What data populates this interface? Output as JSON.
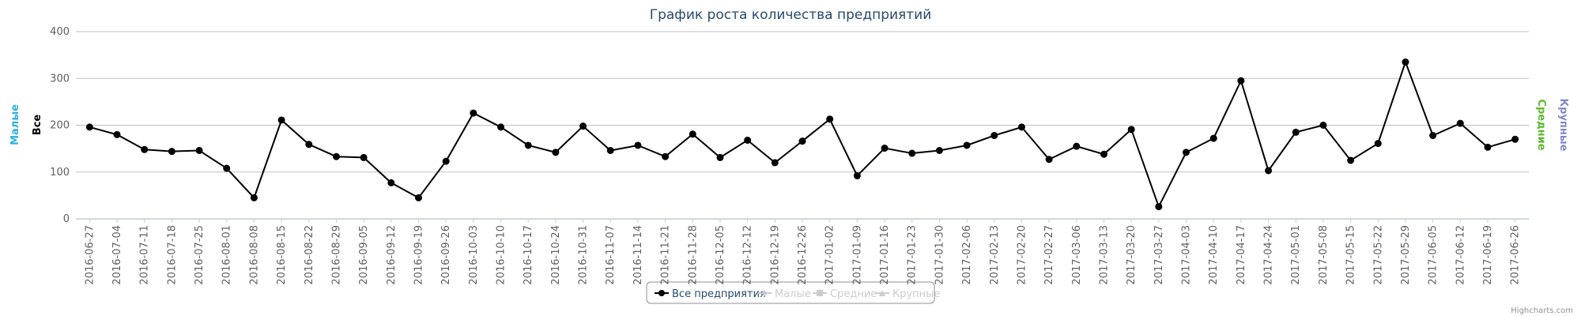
{
  "chart_data": {
    "type": "line",
    "title": "График роста количества предприятий",
    "categories": [
      "2016-06-27",
      "2016-07-04",
      "2016-07-11",
      "2016-07-18",
      "2016-07-25",
      "2016-08-01",
      "2016-08-08",
      "2016-08-15",
      "2016-08-22",
      "2016-08-29",
      "2016-09-05",
      "2016-09-12",
      "2016-09-19",
      "2016-09-26",
      "2016-10-03",
      "2016-10-10",
      "2016-10-17",
      "2016-10-24",
      "2016-10-31",
      "2016-11-07",
      "2016-11-14",
      "2016-11-21",
      "2016-11-28",
      "2016-12-05",
      "2016-12-12",
      "2016-12-19",
      "2016-12-26",
      "2017-01-02",
      "2017-01-09",
      "2017-01-16",
      "2017-01-23",
      "2017-01-30",
      "2017-02-06",
      "2017-02-13",
      "2017-02-20",
      "2017-02-27",
      "2017-03-06",
      "2017-03-13",
      "2017-03-20",
      "2017-03-27",
      "2017-04-03",
      "2017-04-10",
      "2017-04-17",
      "2017-04-24",
      "2017-05-01",
      "2017-05-08",
      "2017-05-15",
      "2017-05-22",
      "2017-05-29",
      "2017-06-05",
      "2017-06-12",
      "2017-06-19",
      "2017-06-26"
    ],
    "series": [
      {
        "name": "Все предприятия",
        "color": "#000000",
        "marker": "circle",
        "visible": true,
        "values": [
          196,
          180,
          148,
          144,
          146,
          108,
          45,
          211,
          159,
          133,
          131,
          77,
          45,
          123,
          226,
          196,
          157,
          142,
          198,
          146,
          157,
          133,
          181,
          131,
          168,
          120,
          166,
          213,
          92,
          151,
          140,
          146,
          157,
          178,
          196,
          127,
          155,
          138,
          191,
          26,
          142,
          172,
          295,
          103,
          185,
          200,
          125,
          161,
          335,
          178,
          204,
          153,
          170
        ]
      },
      {
        "name": "Малые",
        "color": "#2bb0d8",
        "marker": "diamond",
        "visible": false
      },
      {
        "name": "Средние",
        "color": "#5cb82e",
        "marker": "square",
        "visible": false
      },
      {
        "name": "Крупные",
        "color": "#8088cc",
        "marker": "triangle",
        "visible": false
      }
    ],
    "axis_titles": [
      {
        "text": "Малые",
        "color": "#2bb0d8",
        "side": "left"
      },
      {
        "text": "Все",
        "color": "#000000",
        "side": "left"
      },
      {
        "text": "Средние",
        "color": "#5cb82e",
        "side": "right"
      },
      {
        "text": "Крупные",
        "color": "#8088cc",
        "side": "right"
      }
    ],
    "ylim": [
      0,
      400
    ],
    "yticks": [
      0,
      100,
      200,
      300,
      400
    ],
    "grid": true,
    "legend": "bottom",
    "credits": "Highcharts.com"
  }
}
